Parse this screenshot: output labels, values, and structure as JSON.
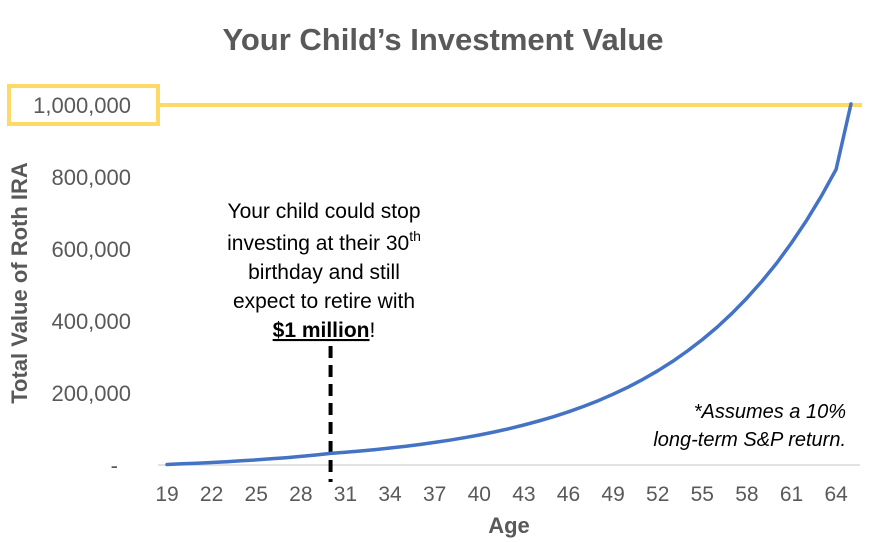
{
  "chart_data": {
    "type": "line",
    "title": "Your Child’s Investment Value",
    "xlabel": "Age",
    "ylabel": "Total Value of Roth IRA",
    "x_ticks": [
      "19",
      "22",
      "25",
      "28",
      "31",
      "34",
      "37",
      "40",
      "43",
      "46",
      "49",
      "52",
      "55",
      "58",
      "61",
      "64"
    ],
    "y_ticks": [
      "-",
      "200,000",
      "400,000",
      "600,000",
      "800,000",
      "1,000,000"
    ],
    "xlim": [
      19,
      65
    ],
    "ylim": [
      0,
      1000000
    ],
    "grid": false,
    "series": [
      {
        "color": "#4472C4",
        "x": [
          19,
          20,
          21,
          22,
          23,
          24,
          25,
          26,
          27,
          28,
          29,
          30,
          31,
          32,
          33,
          34,
          35,
          36,
          37,
          38,
          39,
          40,
          41,
          42,
          43,
          44,
          45,
          46,
          47,
          48,
          49,
          50,
          51,
          52,
          53,
          54,
          55,
          56,
          57,
          58,
          59,
          60,
          61,
          62,
          63,
          64,
          65
        ],
        "values": [
          1500,
          3200,
          5000,
          7000,
          9200,
          11600,
          14300,
          17200,
          20400,
          24000,
          27900,
          32200,
          35400,
          38900,
          42800,
          47100,
          51800,
          57000,
          62700,
          68900,
          75800,
          83400,
          91700,
          100900,
          111000,
          122100,
          134300,
          147700,
          162500,
          178700,
          196600,
          216200,
          237900,
          261700,
          287800,
          316600,
          348300,
          383100,
          421400,
          463500,
          509900,
          560900,
          617000,
          678700,
          746600,
          821200,
          1003000
        ]
      }
    ],
    "reference_lines": [
      {
        "axis": "y",
        "value": 1000000,
        "color": "#FFD966",
        "highlight_label": "1,000,000"
      },
      {
        "axis": "x",
        "value": 30,
        "style": "dashed",
        "color": "#000000"
      }
    ],
    "annotations": {
      "callout_lines": [
        "Your child could stop",
        "investing at their 30",
        "th",
        "birthday and still",
        "expect to retire with",
        "$1 million",
        "!"
      ],
      "footnote_lines": [
        "*Assumes a 10%",
        "long-term S&P return."
      ]
    }
  }
}
